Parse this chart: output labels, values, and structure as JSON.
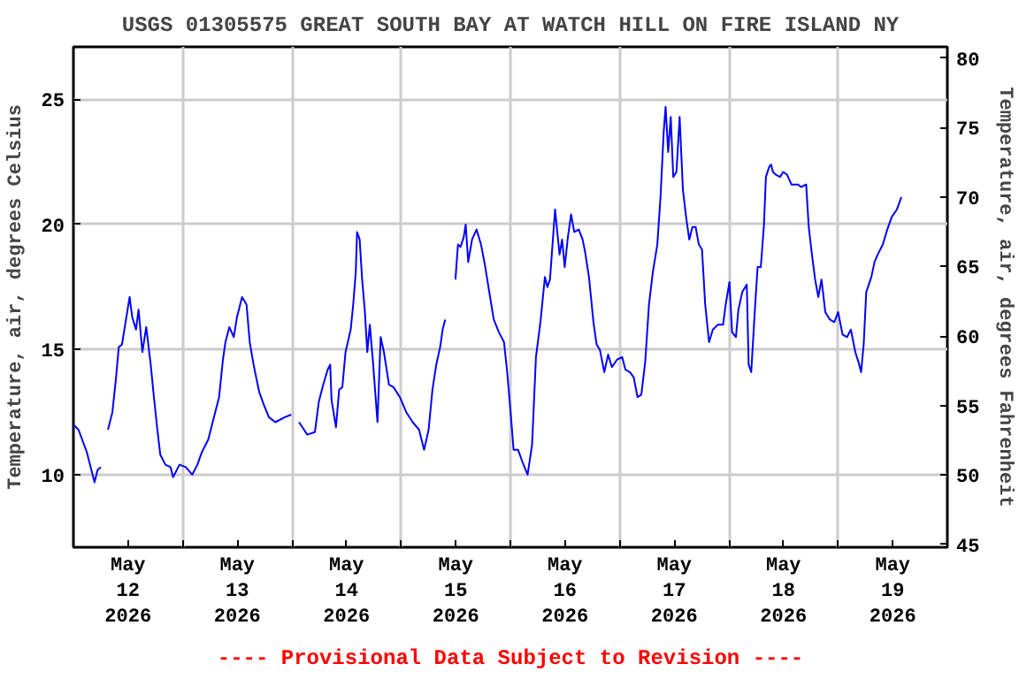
{
  "chart_data": {
    "type": "line",
    "title": "USGS 01305575 GREAT SOUTH BAY AT WATCH HILL ON FIRE ISLAND NY",
    "ylabel": "Temperature, air, degrees Celsius",
    "y2label": "Temperature, air, degrees Fahrenheit",
    "annotations": [
      "---- Provisional Data Subject to Revision ----"
    ],
    "x": [
      "2026-05-12T00:00",
      "2026-05-12T01:07",
      "2026-05-12T02:57",
      "2026-05-12T04:38",
      "2026-05-12T05:20",
      "2026-05-12T06:02",
      "2026-05-12T06:50",
      "2026-05-12T07:35",
      "2026-05-12T08:34",
      "2026-05-12T09:16",
      "2026-05-12T09:58",
      "2026-05-12T10:40",
      "2026-05-12T11:22",
      "2026-05-12T12:21",
      "2026-05-12T12:55",
      "2026-05-12T13:45",
      "2026-05-12T14:19",
      "2026-05-12T15:09",
      "2026-05-12T16:00",
      "2026-05-12T16:59",
      "2026-05-12T17:41",
      "2026-05-12T18:23",
      "2026-05-12T19:05",
      "2026-05-12T20:13",
      "2026-05-12T21:20",
      "2026-05-12T21:54",
      "2026-05-12T23:18",
      "2026-05-13T00:42",
      "2026-05-13T02:06",
      "2026-05-13T03:14",
      "2026-05-13T04:13",
      "2026-05-13T05:37",
      "2026-05-13T07:01",
      "2026-05-13T08:00",
      "2026-05-13T08:51",
      "2026-05-13T09:24",
      "2026-05-13T10:15",
      "2026-05-13T11:14",
      "2026-05-13T11:56",
      "2026-05-13T13:03",
      "2026-05-13T14:02",
      "2026-05-13T14:44",
      "2026-05-13T15:35",
      "2026-05-13T16:08",
      "2026-05-13T16:50",
      "2026-05-13T17:49",
      "2026-05-13T18:57",
      "2026-05-13T20:21",
      "2026-05-13T22:27",
      "2026-05-13T23:51",
      "2026-05-14T00:40",
      "2026-05-14T01:33",
      "2026-05-14T02:40",
      "2026-05-14T03:22",
      "2026-05-14T05:03",
      "2026-05-14T05:54",
      "2026-05-14T06:53",
      "2026-05-14T07:52",
      "2026-05-14T08:25",
      "2026-05-14T08:42",
      "2026-05-14T09:41",
      "2026-05-14T10:23",
      "2026-05-14T11:05",
      "2026-05-14T11:47",
      "2026-05-14T12:55",
      "2026-05-14T13:28",
      "2026-05-14T14:02",
      "2026-05-14T14:19",
      "2026-05-14T14:53",
      "2026-05-14T15:26",
      "2026-05-14T16:00",
      "2026-05-14T16:34",
      "2026-05-14T17:07",
      "2026-05-14T17:49",
      "2026-05-14T18:48",
      "2026-05-14T19:30",
      "2026-05-14T20:13",
      "2026-05-14T21:20",
      "2026-05-14T22:19",
      "2026-05-14T23:43",
      "2026-05-15T01:07",
      "2026-05-15T02:32",
      "2026-05-15T03:56",
      "2026-05-15T05:03",
      "2026-05-15T06:02",
      "2026-05-15T06:53",
      "2026-05-15T07:43",
      "2026-05-15T08:34",
      "2026-05-15T09:07",
      "2026-05-15T09:41",
      "2026-05-15T10:50",
      "2026-05-15T11:56",
      "2026-05-15T12:29",
      "2026-05-15T13:03",
      "2026-05-15T13:45",
      "2026-05-15T14:11",
      "2026-05-15T14:44",
      "2026-05-15T15:35",
      "2026-05-15T16:34",
      "2026-05-15T17:33",
      "2026-05-15T18:23",
      "2026-05-15T19:22",
      "2026-05-15T20:21",
      "2026-05-15T21:28",
      "2026-05-15T22:36",
      "2026-05-15T23:18",
      "2026-05-16T00:00",
      "2026-05-16T00:42",
      "2026-05-16T01:41",
      "2026-05-16T02:40",
      "2026-05-16T03:47",
      "2026-05-16T04:46",
      "2026-05-16T05:37",
      "2026-05-16T06:36",
      "2026-05-16T07:35",
      "2026-05-16T08:08",
      "2026-05-16T08:42",
      "2026-05-16T09:49",
      "2026-05-16T10:15",
      "2026-05-16T10:48",
      "2026-05-16T11:22",
      "2026-05-16T11:56",
      "2026-05-16T12:38",
      "2026-05-16T13:20",
      "2026-05-16T14:02",
      "2026-05-16T15:01",
      "2026-05-16T15:52",
      "2026-05-16T16:25",
      "2026-05-16T17:16",
      "2026-05-16T18:15",
      "2026-05-16T18:57",
      "2026-05-16T19:39",
      "2026-05-16T20:38",
      "2026-05-16T21:28",
      "2026-05-16T22:19",
      "2026-05-16T23:26",
      "2026-05-17T00:34",
      "2026-05-17T01:16",
      "2026-05-17T02:15",
      "2026-05-17T03:05",
      "2026-05-17T03:56",
      "2026-05-17T04:46",
      "2026-05-17T05:37",
      "2026-05-17T06:27",
      "2026-05-17T07:18",
      "2026-05-17T08:17",
      "2026-05-17T08:59",
      "2026-05-17T09:41",
      "2026-05-17T10:06",
      "2026-05-17T10:40",
      "2026-05-17T11:14",
      "2026-05-17T11:47",
      "2026-05-17T12:29",
      "2026-05-17T13:11",
      "2026-05-17T13:54",
      "2026-05-17T14:36",
      "2026-05-17T15:18",
      "2026-05-17T16:00",
      "2026-05-17T16:42",
      "2026-05-17T17:24",
      "2026-05-17T18:06",
      "2026-05-17T18:48",
      "2026-05-17T19:39",
      "2026-05-17T20:29",
      "2026-05-17T21:37",
      "2026-05-17T22:44",
      "2026-05-17T23:18",
      "2026-05-18T00:08",
      "2026-05-18T00:42",
      "2026-05-18T01:33",
      "2026-05-18T02:06",
      "2026-05-18T02:57",
      "2026-05-18T03:56",
      "2026-05-18T04:21",
      "2026-05-18T04:55",
      "2026-05-18T05:45",
      "2026-05-18T06:19",
      "2026-05-18T07:01",
      "2026-05-18T07:43",
      "2026-05-18T08:08",
      "2026-05-18T08:51",
      "2026-05-18T09:16",
      "2026-05-18T09:41",
      "2026-05-18T10:15",
      "2026-05-18T11:14",
      "2026-05-18T11:56",
      "2026-05-18T12:46",
      "2026-05-18T13:45",
      "2026-05-18T14:28",
      "2026-05-18T15:09",
      "2026-05-18T15:52",
      "2026-05-18T16:59",
      "2026-05-18T17:33",
      "2026-05-18T18:15",
      "2026-05-18T18:57",
      "2026-05-18T19:39",
      "2026-05-18T20:21",
      "2026-05-18T21:11",
      "2026-05-18T22:11",
      "2026-05-18T23:10",
      "2026-05-19T00:00",
      "2026-05-19T00:59",
      "2026-05-19T01:58",
      "2026-05-19T02:48",
      "2026-05-19T03:47",
      "2026-05-19T04:29",
      "2026-05-19T05:03",
      "2026-05-19T05:37",
      "2026-05-19T06:11",
      "2026-05-19T07:18",
      "2026-05-19T08:00",
      "2026-05-19T08:42",
      "2026-05-19T09:49",
      "2026-05-19T10:48",
      "2026-05-19T11:47",
      "2026-05-19T12:55",
      "2026-05-19T13:54"
    ],
    "series": [
      {
        "color": "#0000ff",
        "values": [
          12.0,
          11.8,
          10.9,
          9.7,
          10.2,
          10.3,
          null,
          11.8,
          12.5,
          13.7,
          15.1,
          15.2,
          16.0,
          17.1,
          16.3,
          15.8,
          16.6,
          14.9,
          15.9,
          14.4,
          13.1,
          11.9,
          10.8,
          10.4,
          10.3,
          9.9,
          10.4,
          10.3,
          10.0,
          10.4,
          10.9,
          11.4,
          12.4,
          13.1,
          14.6,
          15.3,
          15.9,
          15.5,
          16.3,
          17.1,
          16.8,
          15.3,
          14.4,
          13.9,
          13.3,
          12.8,
          12.3,
          12.1,
          12.3,
          12.4,
          null,
          12.1,
          11.8,
          11.6,
          11.7,
          12.9,
          13.6,
          14.2,
          14.4,
          13.0,
          11.9,
          13.4,
          13.5,
          14.9,
          15.8,
          16.8,
          18.1,
          19.7,
          19.4,
          17.8,
          16.6,
          14.9,
          16.0,
          14.5,
          12.1,
          15.5,
          14.9,
          13.6,
          13.5,
          13.1,
          12.5,
          12.1,
          11.8,
          11.0,
          11.8,
          13.4,
          14.4,
          15.1,
          15.8,
          16.2,
          null,
          17.8,
          19.2,
          19.1,
          19.5,
          20.0,
          18.5,
          19.4,
          19.8,
          19.2,
          18.4,
          17.3,
          16.2,
          15.7,
          15.3,
          14.1,
          12.6,
          11.0,
          11.0,
          10.5,
          10.0,
          11.2,
          14.7,
          16.1,
          17.9,
          17.5,
          17.8,
          20.6,
          19.8,
          18.8,
          19.4,
          18.3,
          19.5,
          20.4,
          19.7,
          19.8,
          19.4,
          18.9,
          17.9,
          16.1,
          15.2,
          15.0,
          14.1,
          14.8,
          14.3,
          14.6,
          14.7,
          14.2,
          14.1,
          13.9,
          13.1,
          13.2,
          14.5,
          16.8,
          18.1,
          19.2,
          21.1,
          23.7,
          24.7,
          22.9,
          24.3,
          21.9,
          22.1,
          24.3,
          21.4,
          20.3,
          19.4,
          19.9,
          19.9,
          19.2,
          19.0,
          16.8,
          15.3,
          15.8,
          16.0,
          16.0,
          16.8,
          17.7,
          15.7,
          15.5,
          16.6,
          17.3,
          17.6,
          14.4,
          14.1,
          16.7,
          18.3,
          18.3,
          20.0,
          21.9,
          22.3,
          22.4,
          22.1,
          22.0,
          21.9,
          22.1,
          22.0,
          21.6,
          21.6,
          21.6,
          21.5,
          21.6,
          19.9,
          18.8,
          17.8,
          17.1,
          17.8,
          16.5,
          16.2,
          16.1,
          16.5,
          15.6,
          15.5,
          15.8,
          14.9,
          14.5,
          14.1,
          15.2,
          17.3,
          17.9,
          18.5,
          18.8,
          19.2,
          19.8,
          20.3,
          20.6,
          21.1
        ]
      }
    ],
    "xlim": [
      "2026-05-12T00:00",
      "2026-05-20T00:00"
    ],
    "xticks": [
      {
        "value": "2026-05-12T12:00",
        "label": "May\n12\n2026"
      },
      {
        "value": "2026-05-13T00:00",
        "label": null
      },
      {
        "value": "2026-05-13T12:00",
        "label": "May\n13\n2026"
      },
      {
        "value": "2026-05-14T00:00",
        "label": null
      },
      {
        "value": "2026-05-14T12:00",
        "label": "May\n14\n2026"
      },
      {
        "value": "2026-05-15T00:00",
        "label": null
      },
      {
        "value": "2026-05-15T12:00",
        "label": "May\n15\n2026"
      },
      {
        "value": "2026-05-16T00:00",
        "label": null
      },
      {
        "value": "2026-05-16T12:00",
        "label": "May\n16\n2026"
      },
      {
        "value": "2026-05-17T00:00",
        "label": null
      },
      {
        "value": "2026-05-17T12:00",
        "label": "May\n17\n2026"
      },
      {
        "value": "2026-05-18T00:00",
        "label": null
      },
      {
        "value": "2026-05-18T12:00",
        "label": "May\n18\n2026"
      },
      {
        "value": "2026-05-19T00:00",
        "label": null
      },
      {
        "value": "2026-05-19T12:00",
        "label": "May\n19\n2026"
      }
    ],
    "ylim": [
      7.1,
      27.1
    ],
    "yticks": [
      10,
      15,
      20,
      25
    ],
    "y2lim": [
      44.8,
      80.8
    ],
    "y2ticks": [
      45,
      50,
      55,
      60,
      65,
      70,
      75,
      80
    ],
    "grid": true,
    "line_style": "solid"
  }
}
